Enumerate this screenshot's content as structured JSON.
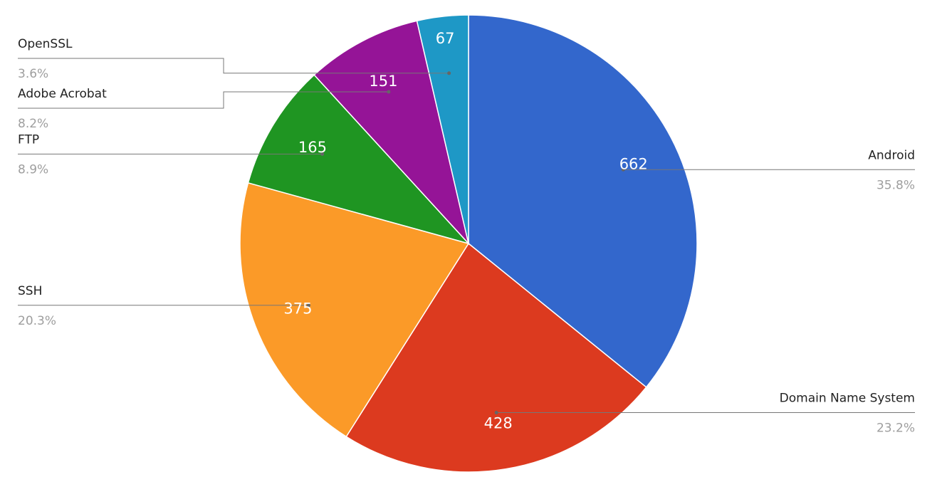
{
  "chart_data": {
    "type": "pie",
    "categories": [
      "Android",
      "Domain Name System",
      "SSH",
      "FTP",
      "Adobe Acrobat",
      "OpenSSL"
    ],
    "values": [
      662,
      428,
      375,
      165,
      151,
      67
    ],
    "percent_labels": [
      "35.8%",
      "23.2%",
      "20.3%",
      "8.9%",
      "8.2%",
      "3.6%"
    ],
    "colors": [
      "#3367cc",
      "#dc3a1f",
      "#fb9a28",
      "#1f9522",
      "#951497",
      "#1e98c6"
    ]
  }
}
